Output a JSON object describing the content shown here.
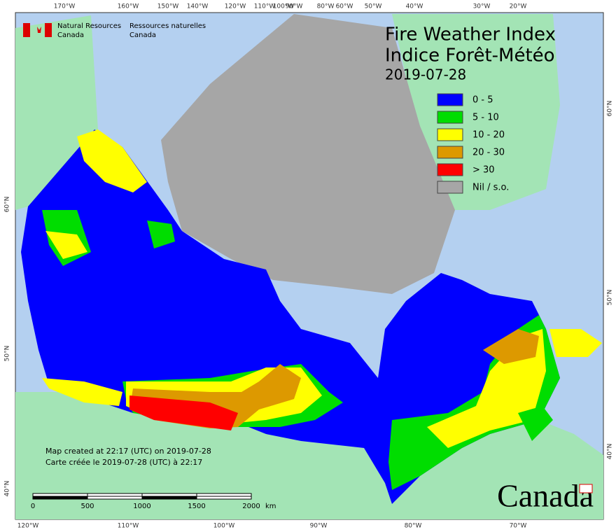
{
  "header": {
    "agency_en": [
      "Natural Resources",
      "Canada"
    ],
    "agency_fr": [
      "Ressources naturelles",
      "Canada"
    ]
  },
  "title": [
    "Fire Weather Index",
    "Indice Forêt-Météo"
  ],
  "date": "2019-07-28",
  "legend": [
    {
      "label": "0 - 5",
      "color": "#0000ff"
    },
    {
      "label": "5 - 10",
      "color": "#00dd00"
    },
    {
      "label": "10 - 20",
      "color": "#ffff00"
    },
    {
      "label": "20 - 30",
      "color": "#dd9900"
    },
    {
      "label": "> 30",
      "color": "#ff0000"
    },
    {
      "label": "Nil / s.o.",
      "color": "#a6a6a6"
    }
  ],
  "graticule": {
    "top": [
      "170°W",
      "160°W",
      "150°W",
      "140°W",
      "120°W",
      "110°W",
      "100°W",
      "90°W",
      "80°W",
      "60°W",
      "50°W",
      "40°W",
      "30°W",
      "20°W"
    ],
    "bottom": [
      "120°W",
      "110°W",
      "100°W",
      "90°W",
      "80°W",
      "70°W"
    ],
    "left": [
      "60°N",
      "50°N",
      "40°N"
    ],
    "right": [
      "60°N",
      "50°N",
      "40°N"
    ]
  },
  "scale": {
    "ticks": [
      "0",
      "500",
      "1000",
      "1500",
      "2000"
    ],
    "unit": "km"
  },
  "credits": [
    "Map created at 22:17 (UTC) on 2019-07-28",
    "Carte créée le 2019-07-28 (UTC) à 22:17"
  ],
  "wordmark": "Canada"
}
